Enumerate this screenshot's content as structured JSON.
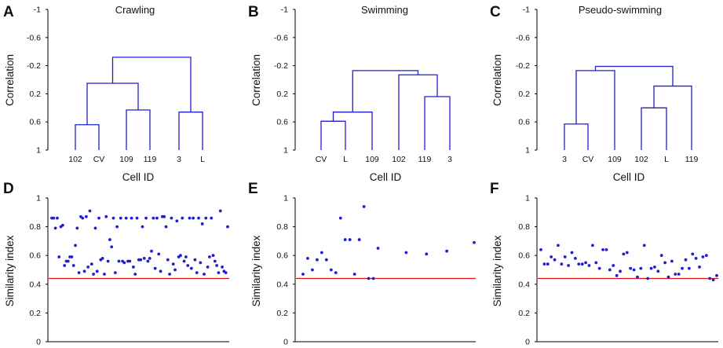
{
  "colors": {
    "tree": "#1f1fd0",
    "dot": "#1f1fd0",
    "threshold": "#e01010",
    "axis": "#000000"
  },
  "chart_data": [
    {
      "type": "dendrogram",
      "panel": "A",
      "title": "Crawling",
      "xlabel": "Cell ID",
      "ylabel": "Correlation",
      "y_ticks": [
        "-1",
        "-0.6",
        "-0.2",
        "0.2",
        "0.6",
        "1"
      ],
      "ylim": [
        1,
        -1
      ],
      "leaves": [
        "102",
        "CV",
        "109",
        "119",
        "3",
        "L"
      ],
      "merges": [
        {
          "left": 0,
          "right": 1,
          "height": 0.64
        },
        {
          "left": 2,
          "right": 3,
          "height": 0.43
        },
        {
          "left": 6,
          "right": 7,
          "height": 0.05
        },
        {
          "left": 4,
          "right": 5,
          "height": 0.46
        },
        {
          "left": 8,
          "right": 9,
          "height": -0.32
        }
      ]
    },
    {
      "type": "dendrogram",
      "panel": "B",
      "title": "Swimming",
      "xlabel": "Cell ID",
      "ylabel": "Correlation",
      "y_ticks": [
        "-1",
        "-0.6",
        "-0.2",
        "0.2",
        "0.6",
        "1"
      ],
      "ylim": [
        1,
        -1
      ],
      "leaves": [
        "CV",
        "L",
        "109",
        "102",
        "119",
        "3"
      ],
      "merges": [
        {
          "left": 0,
          "right": 1,
          "height": 0.59
        },
        {
          "left": 6,
          "right": 2,
          "height": 0.46
        },
        {
          "left": 4,
          "right": 5,
          "height": 0.24
        },
        {
          "left": 3,
          "right": 8,
          "height": -0.07
        },
        {
          "left": 7,
          "right": 9,
          "height": -0.13
        }
      ]
    },
    {
      "type": "dendrogram",
      "panel": "C",
      "title": "Pseudo-swimming",
      "xlabel": "Cell ID",
      "ylabel": "Correlation",
      "y_ticks": [
        "-1",
        "-0.6",
        "-0.2",
        "0.2",
        "0.6",
        "1"
      ],
      "ylim": [
        1,
        -1
      ],
      "leaves": [
        "3",
        "CV",
        "109",
        "102",
        "L",
        "119"
      ],
      "merges": [
        {
          "left": 0,
          "right": 1,
          "height": 0.63
        },
        {
          "left": 3,
          "right": 4,
          "height": 0.4
        },
        {
          "left": 6,
          "right": 2,
          "height": -0.13
        },
        {
          "left": 7,
          "right": 5,
          "height": 0.09
        },
        {
          "left": 8,
          "right": 9,
          "height": -0.19
        }
      ]
    },
    {
      "type": "scatter",
      "panel": "D",
      "ylabel": "Similarity index",
      "y_ticks": [
        "0",
        "0.2",
        "0.4",
        "0.6",
        "0.8",
        "1"
      ],
      "ylim": [
        0,
        1
      ],
      "xlim": [
        0,
        100
      ],
      "threshold": 0.44,
      "y": [
        0.86,
        0.86,
        0.79,
        0.86,
        0.59,
        0.8,
        0.81,
        0.53,
        0.56,
        0.56,
        0.59,
        0.59,
        0.53,
        0.67,
        0.79,
        0.48,
        0.87,
        0.86,
        0.49,
        0.87,
        0.52,
        0.91,
        0.54,
        0.47,
        0.79,
        0.49,
        0.86,
        0.57,
        0.58,
        0.47,
        0.87,
        0.56,
        0.71,
        0.66,
        0.86,
        0.48,
        0.8,
        0.56,
        0.86,
        0.56,
        0.55,
        0.86,
        0.56,
        0.56,
        0.86,
        0.52,
        0.47,
        0.86,
        0.57,
        0.57,
        0.8,
        0.58,
        0.86,
        0.56,
        0.58,
        0.63,
        0.86,
        0.51,
        0.86,
        0.61,
        0.49,
        0.87,
        0.87,
        0.8,
        0.57,
        0.47,
        0.86,
        0.54,
        0.5,
        0.84,
        0.59,
        0.6,
        0.86,
        0.56,
        0.59,
        0.53,
        0.86,
        0.51,
        0.86,
        0.57,
        0.48,
        0.86,
        0.55,
        0.82,
        0.47,
        0.86,
        0.52,
        0.59,
        0.86,
        0.6,
        0.56,
        0.53,
        0.48,
        0.91,
        0.52,
        0.49,
        0.48,
        0.8
      ]
    },
    {
      "type": "scatter",
      "panel": "E",
      "ylabel": "Similarity index",
      "y_ticks": [
        "0",
        "0.2",
        "0.4",
        "0.6",
        "0.8",
        "1"
      ],
      "ylim": [
        0,
        1
      ],
      "xlim": [
        0,
        100
      ],
      "threshold": 0.44,
      "x": [
        5,
        11,
        17,
        23,
        29,
        35,
        41,
        47,
        53,
        59,
        65,
        71,
        77,
        83,
        89,
        95,
        101
      ],
      "y": [
        0.47,
        0.58,
        0.5,
        0.57,
        0.62,
        0.57,
        0.5,
        0.48,
        0.86,
        0.71,
        0.71,
        0.47,
        0.71,
        0.94,
        0.44,
        0.44,
        0.65
      ],
      "x_extra": [
        137,
        163,
        189,
        224
      ],
      "y_extra": [
        0.62,
        0.61,
        0.63,
        0.69
      ]
    },
    {
      "type": "scatter",
      "panel": "F",
      "ylabel": "Similarity index",
      "y_ticks": [
        "0",
        "0.2",
        "0.4",
        "0.6",
        "0.8",
        "1"
      ],
      "ylim": [
        0,
        1
      ],
      "xlim": [
        0,
        100
      ],
      "threshold": 0.44,
      "y": [
        0.64,
        0.54,
        0.54,
        0.59,
        0.57,
        0.67,
        0.54,
        0.59,
        0.53,
        0.62,
        0.58,
        0.54,
        0.54,
        0.55,
        0.53,
        0.67,
        0.55,
        0.51,
        0.64,
        0.64,
        0.5,
        0.53,
        0.46,
        0.49,
        0.61,
        0.62,
        0.51,
        0.5,
        0.45,
        0.51,
        0.67,
        0.44,
        0.51,
        0.52,
        0.49,
        0.6,
        0.55,
        0.45,
        0.56,
        0.47,
        0.47,
        0.51,
        0.57,
        0.51,
        0.61,
        0.58,
        0.52,
        0.59,
        0.6,
        0.44,
        0.43,
        0.46
      ]
    }
  ]
}
